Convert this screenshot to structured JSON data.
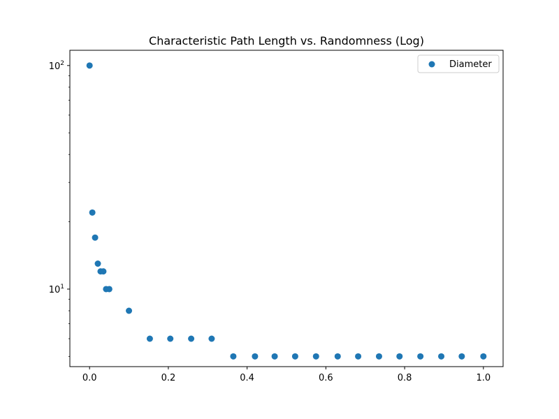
{
  "chart_data": {
    "type": "scatter",
    "title": "Characteristic Path Length vs. Randomness (Log)",
    "xlabel": "",
    "ylabel": "",
    "xlim": [
      -0.05,
      1.05
    ],
    "ylim": [
      4.5,
      117
    ],
    "yscale": "log",
    "grid": false,
    "legend_position": "top-right",
    "x_ticks": [
      {
        "value": 0.0,
        "label": "0.0"
      },
      {
        "value": 0.2,
        "label": "0.2"
      },
      {
        "value": 0.4,
        "label": "0.4"
      },
      {
        "value": 0.6,
        "label": "0.6"
      },
      {
        "value": 0.8,
        "label": "0.8"
      },
      {
        "value": 1.0,
        "label": "1.0"
      }
    ],
    "y_major_ticks": [
      {
        "value": 10,
        "base": "10",
        "exp": "1"
      },
      {
        "value": 100,
        "base": "10",
        "exp": "2"
      }
    ],
    "y_minor_ticks": [
      5,
      6,
      7,
      8,
      9,
      20,
      30,
      40,
      50,
      60,
      70,
      80,
      90
    ],
    "series": [
      {
        "name": "Diameter",
        "color": "#1f77b4",
        "x": [
          0.0,
          0.007,
          0.014,
          0.021,
          0.028,
          0.035,
          0.042,
          0.05,
          0.1,
          0.153,
          0.205,
          0.258,
          0.31,
          0.365,
          0.42,
          0.47,
          0.522,
          0.575,
          0.63,
          0.682,
          0.735,
          0.787,
          0.84,
          0.893,
          0.945,
          1.0
        ],
        "y": [
          100,
          22,
          17,
          13,
          12,
          12,
          10,
          10,
          8,
          6,
          6,
          6,
          6,
          5,
          5,
          5,
          5,
          5,
          5,
          5,
          5,
          5,
          5,
          5,
          5,
          5
        ]
      }
    ]
  }
}
